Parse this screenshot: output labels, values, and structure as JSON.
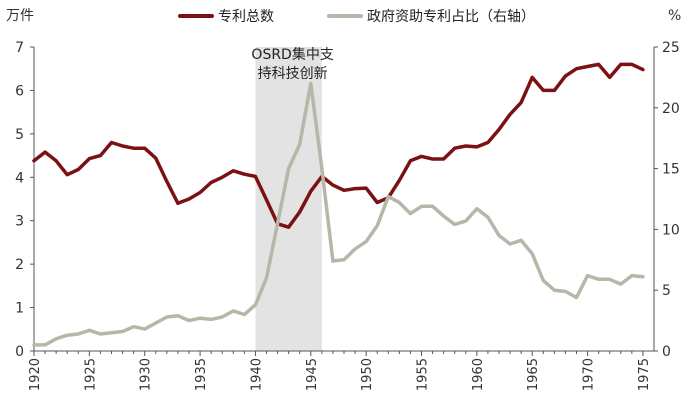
{
  "chart_data": {
    "type": "line",
    "title": "",
    "y_left_label": "万件",
    "y_right_label": "%",
    "ylim_left": [
      0,
      7
    ],
    "ylim_right": [
      0,
      25
    ],
    "y_left_ticks": [
      0,
      1,
      2,
      3,
      4,
      5,
      6,
      7
    ],
    "y_right_ticks": [
      0,
      5,
      10,
      15,
      20,
      25
    ],
    "xlim": [
      1920,
      1976
    ],
    "x_ticks": [
      1920,
      1925,
      1930,
      1935,
      1940,
      1945,
      1950,
      1955,
      1960,
      1965,
      1970,
      1975
    ],
    "legend_position": "top",
    "annotation": {
      "line1": "OSRD集中支",
      "line2": "持科技创新",
      "x_start": 1940,
      "x_end": 1946,
      "color": "#e3e3e3"
    },
    "series": [
      {
        "name": "专利总数",
        "axis": "left",
        "color": "#7b1113",
        "x": [
          1920,
          1921,
          1922,
          1923,
          1924,
          1925,
          1926,
          1927,
          1928,
          1929,
          1930,
          1931,
          1932,
          1933,
          1934,
          1935,
          1936,
          1937,
          1938,
          1939,
          1940,
          1941,
          1942,
          1943,
          1944,
          1945,
          1946,
          1947,
          1948,
          1949,
          1950,
          1951,
          1952,
          1953,
          1954,
          1955,
          1956,
          1957,
          1958,
          1959,
          1960,
          1961,
          1962,
          1963,
          1964,
          1965,
          1966,
          1967,
          1968,
          1969,
          1970,
          1971,
          1972,
          1973,
          1974,
          1975
        ],
        "values": [
          4.38,
          4.58,
          4.38,
          4.06,
          4.18,
          4.43,
          4.5,
          4.8,
          4.72,
          4.67,
          4.67,
          4.44,
          3.9,
          3.4,
          3.5,
          3.65,
          3.88,
          4.0,
          4.15,
          4.07,
          4.02,
          3.48,
          2.93,
          2.85,
          3.2,
          3.68,
          4.02,
          3.82,
          3.7,
          3.74,
          3.75,
          3.42,
          3.53,
          3.93,
          4.38,
          4.48,
          4.42,
          4.42,
          4.67,
          4.72,
          4.7,
          4.8,
          5.1,
          5.45,
          5.72,
          6.3,
          6.0,
          6.0,
          6.33,
          6.5,
          6.55,
          6.6,
          6.3,
          6.6,
          6.6,
          6.48
        ]
      },
      {
        "name": "政府资助专利占比（右轴）",
        "axis": "right",
        "color": "#b6b7a9",
        "x": [
          1920,
          1921,
          1922,
          1923,
          1924,
          1925,
          1926,
          1927,
          1928,
          1929,
          1930,
          1931,
          1932,
          1933,
          1934,
          1935,
          1936,
          1937,
          1938,
          1939,
          1940,
          1941,
          1942,
          1943,
          1944,
          1945,
          1946,
          1947,
          1948,
          1949,
          1950,
          1951,
          1952,
          1953,
          1954,
          1955,
          1956,
          1957,
          1958,
          1959,
          1960,
          1961,
          1962,
          1963,
          1964,
          1965,
          1966,
          1967,
          1968,
          1969,
          1970,
          1971,
          1972,
          1973,
          1974,
          1975
        ],
        "values": [
          0.5,
          0.5,
          1.0,
          1.3,
          1.4,
          1.7,
          1.4,
          1.5,
          1.6,
          2.0,
          1.8,
          2.3,
          2.8,
          2.9,
          2.5,
          2.7,
          2.6,
          2.8,
          3.3,
          3.0,
          3.8,
          6.0,
          10.5,
          15.0,
          17.0,
          22.0,
          15.0,
          7.4,
          7.5,
          8.4,
          9.0,
          10.3,
          12.7,
          12.2,
          11.3,
          11.9,
          11.9,
          11.1,
          10.4,
          10.7,
          11.7,
          11.0,
          9.5,
          8.8,
          9.1,
          8.0,
          5.8,
          5.0,
          4.9,
          4.4,
          6.2,
          5.9,
          5.9,
          5.5,
          6.2,
          6.1
        ]
      }
    ]
  }
}
